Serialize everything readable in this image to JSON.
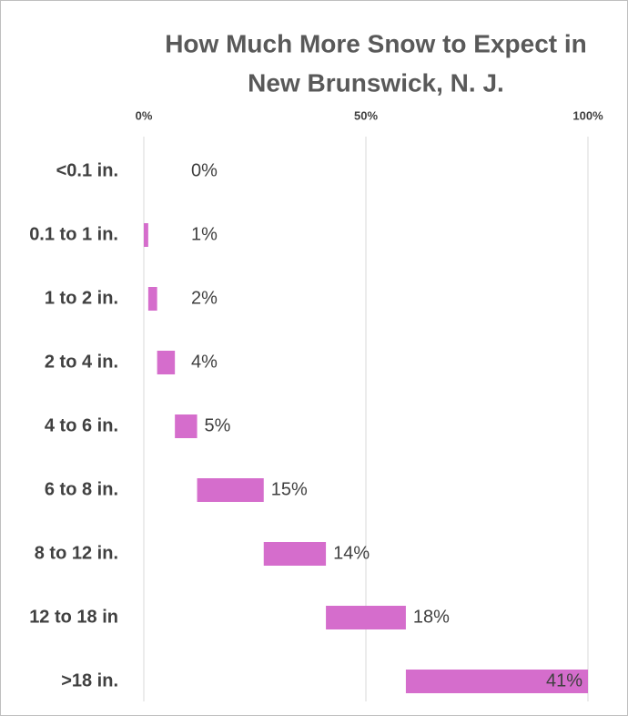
{
  "chart_data": {
    "type": "waterfall",
    "orientation": "horizontal",
    "title": [
      "How Much More Snow to Expect in",
      "New Brunswick, N. J."
    ],
    "categories": [
      "<0.1 in.",
      "0.1 to 1 in.",
      "1 to 2 in.",
      "2 to 4 in.",
      "4 to 6 in.",
      "6 to 8 in.",
      "8 to 12 in.",
      "12 to 18 in",
      ">18 in."
    ],
    "values": [
      0,
      1,
      2,
      4,
      5,
      15,
      14,
      18,
      41
    ],
    "value_labels": [
      "0%",
      "1%",
      "2%",
      "4%",
      "5%",
      "15%",
      "14%",
      "18%",
      "41%"
    ],
    "color": "#d56dcc",
    "xlim": [
      0,
      100
    ],
    "xticks": [
      {
        "value": 0,
        "label": "0%"
      },
      {
        "value": 50,
        "label": "50%"
      },
      {
        "value": 100,
        "label": "100%"
      }
    ],
    "grid": true
  }
}
